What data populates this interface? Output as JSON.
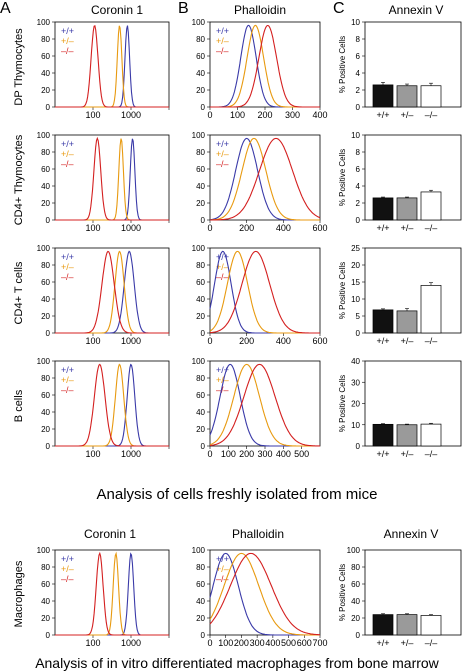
{
  "figure": {
    "panel_letters": [
      "A",
      "B",
      "C"
    ],
    "column_titles": [
      "Coronin 1",
      "Phalloidin",
      "Annexin V"
    ],
    "row_labels": [
      "DP Thymocytes",
      "CD4+ Thymocytes",
      "CD4+ T cells",
      "B cells",
      "Macrophages"
    ],
    "caption_top": "Analysis of cells freshly isolated from mice",
    "caption_bottom": "Analysis of in vitro differentiated macrophages from bone marrow",
    "legend": [
      "+/+",
      "+/–",
      "–/–"
    ],
    "bar_categories": [
      "+/+",
      "+/–",
      "–/–"
    ],
    "bar_ylabel": "% Positive Cells",
    "colors": {
      "wt": "#3a3aa8",
      "het": "#e89a10",
      "ko": "#d42020"
    }
  },
  "chart_data": [
    {
      "type": "line",
      "panel": "A",
      "row": "DP Thymocytes",
      "title": "Coronin 1",
      "x_scale": "log",
      "xlim": [
        10,
        10000
      ],
      "ylim": [
        0,
        100
      ],
      "xticks": [
        100,
        1000,
        10000
      ],
      "xticklabels": [
        "100",
        "1000",
        ""
      ],
      "yticks": [
        0,
        20,
        40,
        60,
        80,
        100
      ],
      "series": [
        {
          "name": "+/+",
          "peak": 800,
          "width": 0.06
        },
        {
          "name": "+/–",
          "peak": 500,
          "width": 0.06
        },
        {
          "name": "–/–",
          "peak": 110,
          "width": 0.09
        }
      ]
    },
    {
      "type": "line",
      "panel": "B",
      "row": "DP Thymocytes",
      "title": "Phalloidin",
      "x_scale": "linear",
      "xlim": [
        0,
        400
      ],
      "ylim": [
        0,
        100
      ],
      "xticks": [
        0,
        100,
        200,
        300,
        400
      ],
      "xticklabels": [
        "0",
        "100",
        "200",
        "300",
        "400"
      ],
      "yticks": [
        0,
        20,
        40,
        60,
        80,
        100
      ],
      "series": [
        {
          "name": "+/+",
          "peak": 140,
          "width": 28
        },
        {
          "name": "+/–",
          "peak": 165,
          "width": 30
        },
        {
          "name": "–/–",
          "peak": 210,
          "width": 32
        }
      ]
    },
    {
      "type": "bar",
      "panel": "C",
      "row": "DP Thymocytes",
      "title": "Annexin V",
      "ylabel": "% Positive Cells",
      "ylim": [
        0,
        10
      ],
      "yticks": [
        0,
        2,
        4,
        6,
        8,
        10
      ],
      "categories": [
        "+/+",
        "+/–",
        "–/–"
      ],
      "values": [
        2.6,
        2.5,
        2.5
      ],
      "errors": [
        0.3,
        0.2,
        0.3
      ]
    },
    {
      "type": "line",
      "panel": "A",
      "row": "CD4+ Thymocytes",
      "x_scale": "log",
      "xlim": [
        10,
        10000
      ],
      "ylim": [
        0,
        100
      ],
      "xticks": [
        100,
        1000,
        10000
      ],
      "xticklabels": [
        "100",
        "1000",
        ""
      ],
      "yticks": [
        0,
        20,
        40,
        60,
        80,
        100
      ],
      "series": [
        {
          "name": "+/+",
          "peak": 1100,
          "width": 0.06
        },
        {
          "name": "+/–",
          "peak": 550,
          "width": 0.06
        },
        {
          "name": "–/–",
          "peak": 130,
          "width": 0.09
        }
      ]
    },
    {
      "type": "line",
      "panel": "B",
      "row": "CD4+ Thymocytes",
      "x_scale": "linear",
      "xlim": [
        0,
        600
      ],
      "ylim": [
        0,
        100
      ],
      "xticks": [
        0,
        200,
        400,
        600
      ],
      "xticklabels": [
        "0",
        "200",
        "400",
        "600"
      ],
      "yticks": [
        0,
        20,
        40,
        60,
        80,
        100
      ],
      "series": [
        {
          "name": "+/+",
          "peak": 200,
          "width": 60
        },
        {
          "name": "+/–",
          "peak": 240,
          "width": 65
        },
        {
          "name": "–/–",
          "peak": 360,
          "width": 90
        }
      ]
    },
    {
      "type": "bar",
      "panel": "C",
      "row": "CD4+ Thymocytes",
      "ylabel": "% Positive Cells",
      "ylim": [
        0,
        10
      ],
      "yticks": [
        0,
        2,
        4,
        6,
        8,
        10
      ],
      "categories": [
        "+/+",
        "+/–",
        "–/–"
      ],
      "values": [
        2.6,
        2.6,
        3.3
      ],
      "errors": [
        0.1,
        0.1,
        0.2
      ]
    },
    {
      "type": "line",
      "panel": "A",
      "row": "CD4+ T cells",
      "x_scale": "log",
      "xlim": [
        10,
        10000
      ],
      "ylim": [
        0,
        100
      ],
      "xticks": [
        100,
        1000,
        10000
      ],
      "xticklabels": [
        "100",
        "1000",
        ""
      ],
      "yticks": [
        0,
        20,
        40,
        60,
        80,
        100
      ],
      "series": [
        {
          "name": "+/+",
          "peak": 900,
          "width": 0.13
        },
        {
          "name": "+/–",
          "peak": 500,
          "width": 0.12
        },
        {
          "name": "–/–",
          "peak": 250,
          "width": 0.16
        }
      ]
    },
    {
      "type": "line",
      "panel": "B",
      "row": "CD4+ T cells",
      "x_scale": "linear",
      "xlim": [
        0,
        600
      ],
      "ylim": [
        0,
        100
      ],
      "xticks": [
        0,
        200,
        400,
        600
      ],
      "xticklabels": [
        "0",
        "200",
        "400",
        "600"
      ],
      "yticks": [
        0,
        20,
        40,
        60,
        80,
        100
      ],
      "series": [
        {
          "name": "+/+",
          "peak": 70,
          "width": 45
        },
        {
          "name": "+/–",
          "peak": 150,
          "width": 55
        },
        {
          "name": "–/–",
          "peak": 250,
          "width": 75
        }
      ]
    },
    {
      "type": "bar",
      "panel": "C",
      "row": "CD4+ T cells",
      "ylabel": "% Positive Cells",
      "ylim": [
        0,
        25
      ],
      "yticks": [
        0,
        5,
        10,
        15,
        20,
        25
      ],
      "categories": [
        "+/+",
        "+/–",
        "–/–"
      ],
      "values": [
        6.8,
        6.5,
        14.0
      ],
      "errors": [
        0.3,
        0.7,
        0.8
      ]
    },
    {
      "type": "line",
      "panel": "A",
      "row": "B cells",
      "x_scale": "log",
      "xlim": [
        10,
        10000
      ],
      "ylim": [
        0,
        100
      ],
      "xticks": [
        100,
        1000,
        10000
      ],
      "xticklabels": [
        "100",
        "1000",
        ""
      ],
      "yticks": [
        0,
        20,
        40,
        60,
        80,
        100
      ],
      "series": [
        {
          "name": "+/+",
          "peak": 1000,
          "width": 0.1
        },
        {
          "name": "+/–",
          "peak": 500,
          "width": 0.11
        },
        {
          "name": "–/–",
          "peak": 150,
          "width": 0.14
        }
      ]
    },
    {
      "type": "line",
      "panel": "B",
      "row": "B cells",
      "x_scale": "linear",
      "xlim": [
        0,
        600
      ],
      "ylim": [
        0,
        100
      ],
      "xticks": [
        0,
        100,
        200,
        300,
        400,
        500
      ],
      "xticklabels": [
        "0",
        "100",
        "200",
        "300",
        "400",
        "500"
      ],
      "yticks": [
        0,
        20,
        40,
        60,
        80,
        100
      ],
      "series": [
        {
          "name": "+/+",
          "peak": 110,
          "width": 55
        },
        {
          "name": "+/–",
          "peak": 200,
          "width": 70
        },
        {
          "name": "–/–",
          "peak": 270,
          "width": 85
        }
      ]
    },
    {
      "type": "bar",
      "panel": "C",
      "row": "B cells",
      "ylabel": "% Positive Cells",
      "ylim": [
        0,
        40
      ],
      "yticks": [
        0,
        10,
        20,
        30,
        40
      ],
      "categories": [
        "+/+",
        "+/–",
        "–/–"
      ],
      "values": [
        10.2,
        10.0,
        10.3
      ],
      "errors": [
        0.3,
        0.3,
        0.4
      ]
    },
    {
      "type": "line",
      "panel": "A",
      "row": "Macrophages",
      "title": "Coronin 1",
      "x_scale": "log",
      "xlim": [
        10,
        10000
      ],
      "ylim": [
        0,
        100
      ],
      "xticks": [
        100,
        1000,
        10000
      ],
      "xticklabels": [
        "100",
        "1000",
        ""
      ],
      "yticks": [
        0,
        20,
        40,
        60,
        80,
        100
      ],
      "series": [
        {
          "name": "+/+",
          "peak": 1000,
          "width": 0.07
        },
        {
          "name": "+/–",
          "peak": 400,
          "width": 0.07
        },
        {
          "name": "–/–",
          "peak": 150,
          "width": 0.09
        }
      ]
    },
    {
      "type": "line",
      "panel": "B",
      "row": "Macrophages",
      "title": "Phalloidin",
      "x_scale": "linear",
      "xlim": [
        0,
        700
      ],
      "ylim": [
        0,
        100
      ],
      "xticks": [
        0,
        100,
        200,
        300,
        400,
        500,
        600,
        700
      ],
      "xticklabels": [
        "0",
        "100",
        "200",
        "300",
        "400",
        "500",
        "600",
        "700"
      ],
      "yticks": [
        0,
        20,
        40,
        60,
        80,
        100
      ],
      "series": [
        {
          "name": "+/+",
          "peak": 100,
          "width": 80
        },
        {
          "name": "+/–",
          "peak": 200,
          "width": 110
        },
        {
          "name": "–/–",
          "peak": 260,
          "width": 130
        }
      ]
    },
    {
      "type": "bar",
      "panel": "C",
      "row": "Macrophages",
      "title": "Annexin V",
      "ylabel": "% Positive Cells",
      "ylim": [
        0,
        100
      ],
      "yticks": [
        0,
        20,
        40,
        60,
        80,
        100
      ],
      "categories": [
        "+/+",
        "+/–",
        "–/–"
      ],
      "values": [
        24,
        24,
        23
      ],
      "errors": [
        1,
        1,
        1
      ]
    }
  ]
}
